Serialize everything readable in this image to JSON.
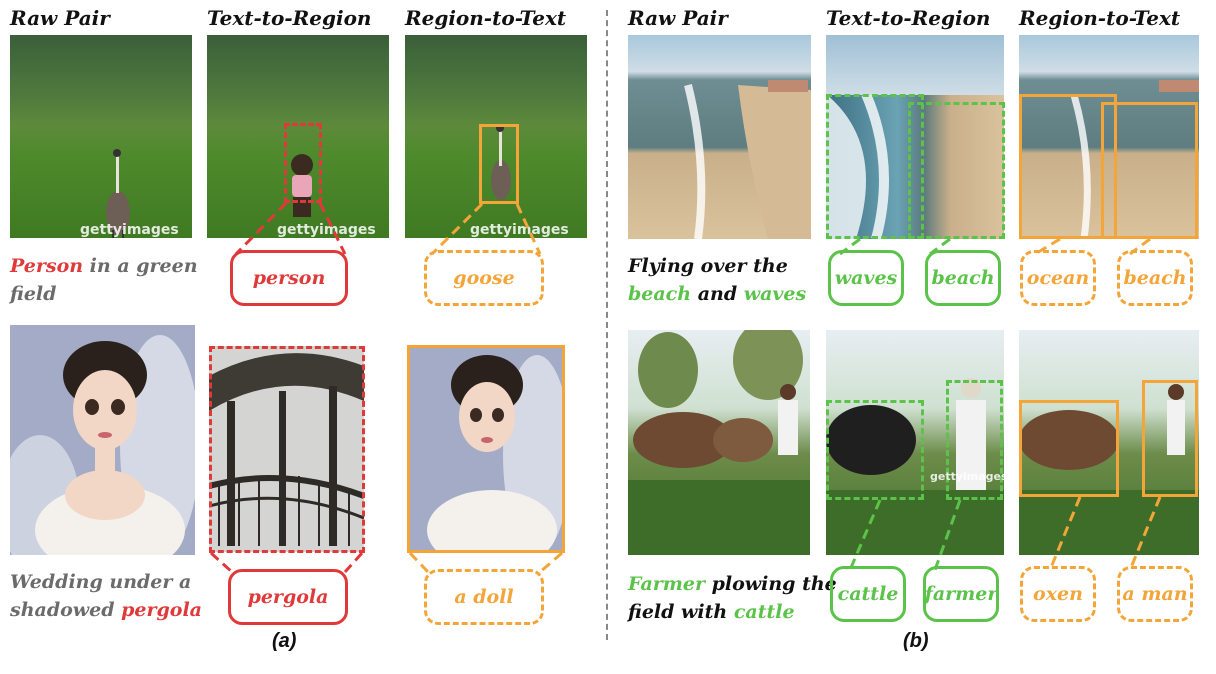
{
  "headers": {
    "a_raw": "Raw Pair",
    "a_t2r": "Text-to-Region",
    "a_r2t": "Region-to-Text",
    "b_raw": "Raw Pair",
    "b_t2r": "Text-to-Region",
    "b_r2t": "Region-to-Text"
  },
  "panel_a": {
    "row1": {
      "caption": {
        "w1": "Person",
        "w2": " in a green",
        "w3": "field"
      },
      "t2r_label": "person",
      "r2t_label": "goose",
      "watermark": "gettyimages"
    },
    "row2": {
      "caption": {
        "w1": "Wedding under a",
        "w2": "shadowed ",
        "w3": "pergola"
      },
      "t2r_label": "pergola",
      "r2t_label": "a doll"
    },
    "sublabel": "(a)"
  },
  "panel_b": {
    "row1": {
      "caption": {
        "w1": "Flying over the",
        "w2": "beach",
        "w3": " and ",
        "w4": "waves"
      },
      "t2r_labels": [
        "waves",
        "beach"
      ],
      "r2t_labels": [
        "ocean",
        "beach"
      ]
    },
    "row2": {
      "caption": {
        "w1": "Farmer",
        "w2": " plowing the",
        "w3": "field with ",
        "w4": "cattle"
      },
      "t2r_labels": [
        "cattle",
        "farmer"
      ],
      "r2t_labels": [
        "oxen",
        "a man"
      ],
      "watermark": "gettyimages"
    },
    "sublabel": "(b)"
  },
  "colors": {
    "red": "#e0393a",
    "orange": "#f4a53a",
    "green": "#5cc34a"
  }
}
